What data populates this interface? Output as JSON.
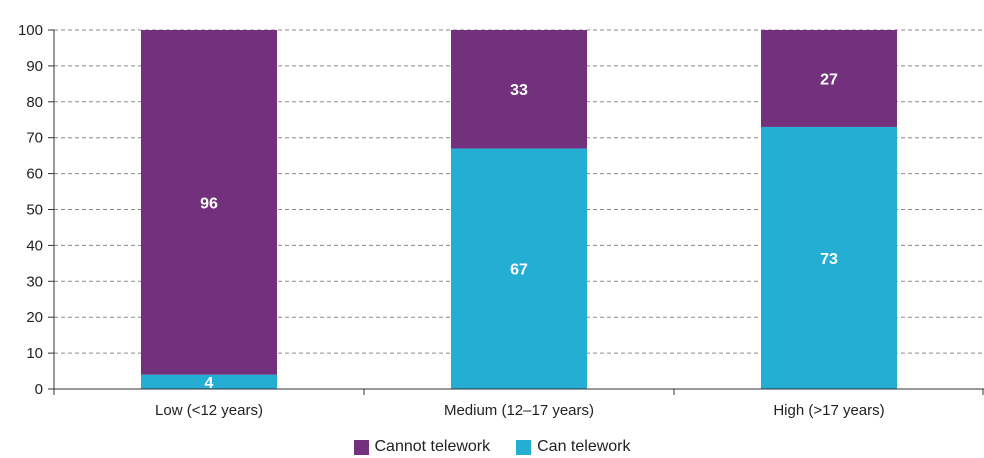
{
  "chart_data": {
    "type": "bar",
    "stacked": true,
    "categories": [
      "Low (<12 years)",
      "Medium (12–17 years)",
      "High (>17 years)"
    ],
    "series": [
      {
        "name": "Can telework",
        "values": [
          4,
          67,
          73
        ],
        "color": "#24AED4"
      },
      {
        "name": "Cannot telework",
        "values": [
          96,
          33,
          27
        ],
        "color": "#72307D"
      }
    ],
    "title": "",
    "xlabel": "",
    "ylabel": "",
    "ylim": [
      0,
      100
    ],
    "yticks": [
      0,
      10,
      20,
      30,
      40,
      50,
      60,
      70,
      80,
      90,
      100
    ],
    "grid": "horizontal dashed",
    "legend_position": "bottom",
    "legend_order": [
      "Cannot telework",
      "Can telework"
    ]
  }
}
